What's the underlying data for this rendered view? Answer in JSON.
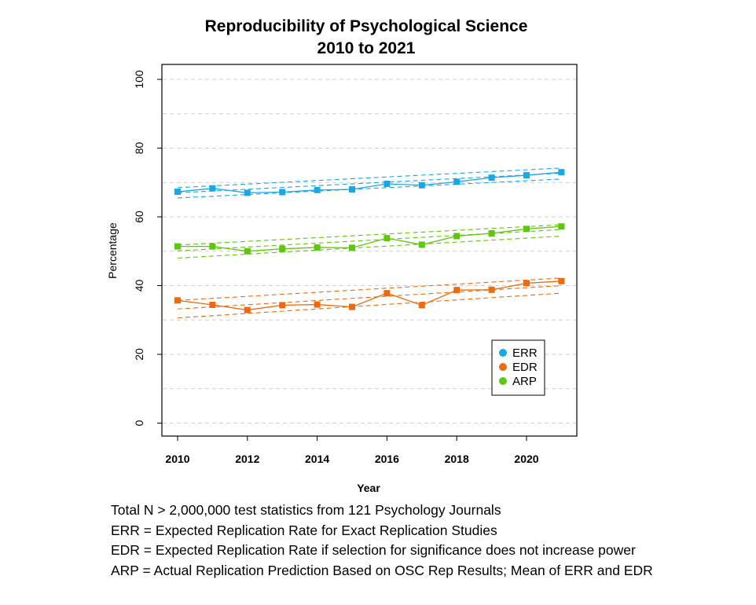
{
  "chart_data": {
    "type": "line",
    "title": "Reproducibility of Psychological Science",
    "subtitle": "2010 to 2021",
    "xlabel": "Year",
    "ylabel": "Percentage",
    "xlim": [
      2010,
      2021
    ],
    "ylim": [
      0,
      100
    ],
    "x_ticks": [
      "2010",
      "2012",
      "2014",
      "2016",
      "2018",
      "2020"
    ],
    "y_ticks": [
      "0",
      "20",
      "40",
      "60",
      "80",
      "100"
    ],
    "grid": "horizontal dashed",
    "legend_position": "bottom-right",
    "x": [
      2010,
      2011,
      2012,
      2013,
      2014,
      2015,
      2016,
      2017,
      2018,
      2019,
      2020,
      2021
    ],
    "series": [
      {
        "name": "ERR",
        "color": "#1aa7e6",
        "values": [
          67.3,
          68.3,
          67.0,
          67.2,
          67.8,
          68.0,
          69.6,
          69.2,
          70.2,
          71.4,
          72.1,
          73.0
        ],
        "trend": [
          67.0,
          72.7
        ],
        "band_lower": [
          65.5,
          71.0
        ],
        "band_upper": [
          68.5,
          74.2
        ]
      },
      {
        "name": "EDR",
        "color": "#ef6a0d",
        "values": [
          35.7,
          34.4,
          32.9,
          34.3,
          34.5,
          33.8,
          37.8,
          34.3,
          38.7,
          38.8,
          40.7,
          41.3
        ],
        "trend": [
          33.2,
          40.0
        ],
        "band_lower": [
          30.6,
          37.8
        ],
        "band_upper": [
          35.7,
          42.2
        ]
      },
      {
        "name": "ARP",
        "color": "#5dc70c",
        "values": [
          51.4,
          51.4,
          50.0,
          50.7,
          51.1,
          51.0,
          53.8,
          51.9,
          54.4,
          55.2,
          56.5,
          57.2
        ],
        "trend": [
          50.1,
          56.3
        ],
        "band_lower": [
          48.0,
          54.4
        ],
        "band_upper": [
          51.8,
          57.7
        ]
      }
    ]
  },
  "notes": [
    "Total N > 2,000,000 test statistics from 121 Psychology Journals",
    "ERR = Expected Replication Rate for Exact Replication Studies",
    "EDR = Expected Replication Rate if selection for significance does not increase power",
    "ARP = Actual Replication Prediction Based on OSC Rep Results; Mean of ERR and EDR"
  ]
}
